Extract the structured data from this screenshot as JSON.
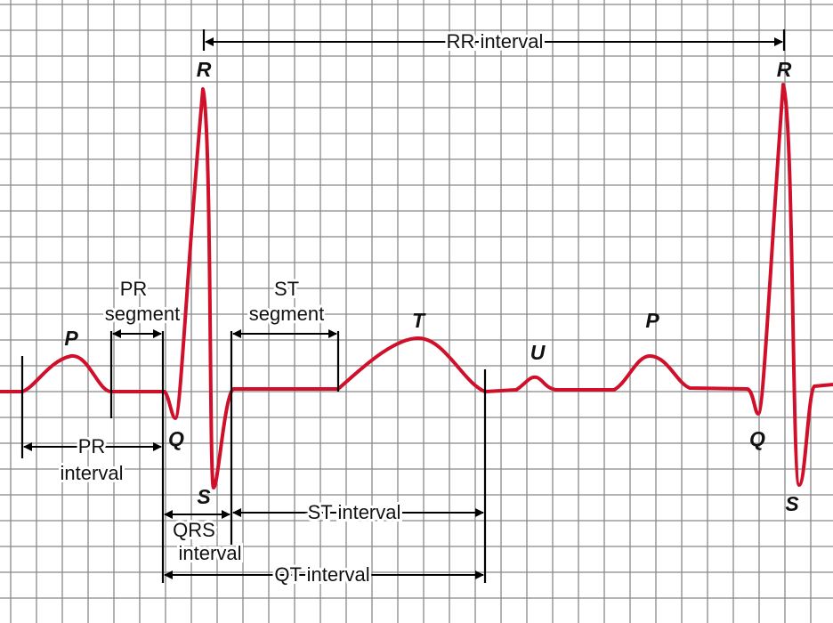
{
  "waves": {
    "p1": "P",
    "q1": "Q",
    "r1": "R",
    "s1": "S",
    "t": "T",
    "u": "U",
    "p2": "P",
    "q2": "Q",
    "r2": "R",
    "s2": "S"
  },
  "intervals": {
    "rr": "RR interval",
    "pr_segment": [
      "PR",
      "segment"
    ],
    "st_segment": [
      "ST",
      "segment"
    ],
    "pr_interval": [
      "PR",
      "interval"
    ],
    "qrs_interval": [
      "QRS",
      "interval"
    ],
    "st_interval": "ST interval",
    "qt_interval": "QT interval"
  }
}
